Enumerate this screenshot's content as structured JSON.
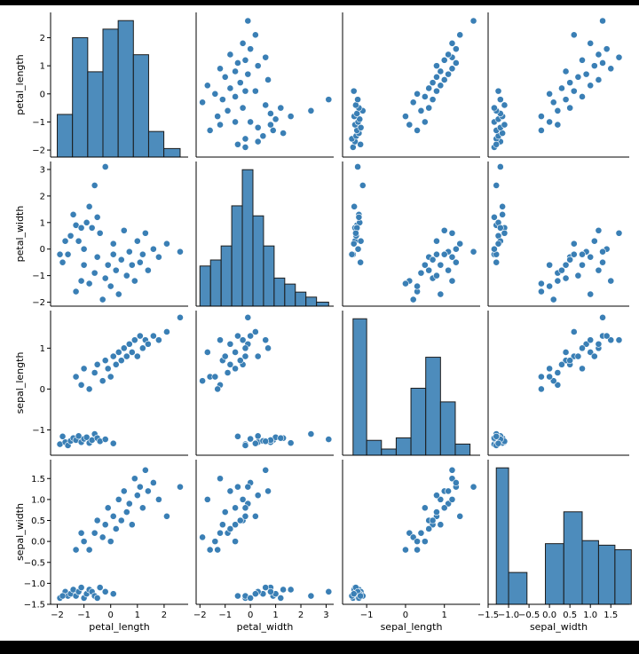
{
  "chart_data": {
    "type": "scatter",
    "variables": [
      "petal_length",
      "petal_width",
      "sepal_length",
      "sepal_width"
    ],
    "axis_labels": {
      "x": [
        "petal_length",
        "petal_width",
        "sepal_length",
        "sepal_width"
      ],
      "y": [
        "petal_length",
        "petal_width",
        "sepal_length",
        "sepal_width"
      ]
    },
    "ranges": {
      "petal_length": [
        -2.25,
        2.9
      ],
      "petal_width": [
        -2.15,
        3.3
      ],
      "sepal_length": [
        -1.62,
        1.92
      ],
      "sepal_width": [
        -1.5,
        1.95
      ]
    },
    "ticks": {
      "petal_length": [
        -2,
        -1,
        0,
        1,
        2
      ],
      "petal_width": [
        -2,
        -1,
        0,
        1,
        2,
        3
      ],
      "sepal_length": [
        -1,
        0,
        1
      ],
      "sepal_width": [
        -1.5,
        -1.0,
        -0.5,
        0.0,
        0.5,
        1.0,
        1.5
      ]
    },
    "tick_labels": {
      "petal_length": [
        "−2",
        "−1",
        "0",
        "1",
        "2"
      ],
      "petal_width": [
        "−2",
        "−1",
        "0",
        "1",
        "2",
        "3"
      ],
      "sepal_length": [
        "−1",
        "0",
        "1"
      ],
      "sepal_width": [
        "−1.5",
        "−1.0",
        "−0.5",
        "0.0",
        "0.5",
        "1.0",
        "1.5"
      ]
    },
    "histograms": {
      "petal_length": {
        "edges": [
          -2.0,
          -1.43,
          -0.86,
          -0.29,
          0.28,
          0.85,
          1.42,
          1.99,
          2.6
        ],
        "counts": [
          5,
          14,
          10,
          15,
          16,
          12,
          3,
          1
        ]
      },
      "petal_width": {
        "edges": [
          -2.0,
          -1.58,
          -1.16,
          -0.74,
          -0.32,
          0.1,
          0.52,
          0.94,
          1.36,
          1.78,
          2.2,
          2.62,
          3.1
        ],
        "counts": [
          2,
          2.3,
          3,
          5,
          6.8,
          4.5,
          3,
          1.4,
          1.1,
          0.7,
          0.45,
          0.2
        ]
      },
      "sepal_length": {
        "edges": [
          -1.35,
          -1.0,
          -0.62,
          -0.24,
          0.14,
          0.52,
          0.9,
          1.28,
          1.66
        ],
        "counts": [
          11,
          1.2,
          0.5,
          1.4,
          5.4,
          7.9,
          4.3,
          0.9
        ]
      },
      "sepal_width": {
        "edges": [
          -1.3,
          -1.0,
          -0.55,
          -0.1,
          0.35,
          0.8,
          1.2,
          1.6,
          2.0
        ],
        "counts": [
          9,
          2.1,
          0,
          4.0,
          6.1,
          4.2,
          3.9,
          3.6
        ]
      }
    },
    "points": [
      {
        "petal_length": -1.9,
        "petal_width": -0.2,
        "sepal_length": -1.35,
        "sepal_width": -1.35
      },
      {
        "petal_length": -1.7,
        "petal_width": 0.3,
        "sepal_length": -1.3,
        "sepal_width": -1.2
      },
      {
        "petal_length": -1.6,
        "petal_width": -0.2,
        "sepal_length": -1.38,
        "sepal_width": -1.3
      },
      {
        "petal_length": -1.5,
        "petal_width": 0.5,
        "sepal_length": -1.27,
        "sepal_width": -1.25
      },
      {
        "petal_length": -1.4,
        "petal_width": 1.3,
        "sepal_length": -1.2,
        "sepal_width": -1.15
      },
      {
        "petal_length": -1.3,
        "petal_width": 0.9,
        "sepal_length": -1.25,
        "sepal_width": -1.3
      },
      {
        "petal_length": -1.2,
        "petal_width": 0.3,
        "sepal_length": -1.15,
        "sepal_width": -1.2
      },
      {
        "petal_length": -1.1,
        "petal_width": 0.8,
        "sepal_length": -1.3,
        "sepal_width": -1.1
      },
      {
        "petal_length": -1.0,
        "petal_width": 0.0,
        "sepal_length": -1.22,
        "sepal_width": -1.35
      },
      {
        "petal_length": -0.9,
        "petal_width": 1.0,
        "sepal_length": -1.18,
        "sepal_width": -1.25
      },
      {
        "petal_length": -0.8,
        "petal_width": 1.6,
        "sepal_length": -1.32,
        "sepal_width": -1.15
      },
      {
        "petal_length": -0.7,
        "petal_width": 0.8,
        "sepal_length": -1.25,
        "sepal_width": -1.2
      },
      {
        "petal_length": -0.6,
        "petal_width": 2.4,
        "sepal_length": -1.1,
        "sepal_width": -1.3
      },
      {
        "petal_length": -0.5,
        "petal_width": 1.2,
        "sepal_length": -1.2,
        "sepal_width": -1.35
      },
      {
        "petal_length": -0.4,
        "petal_width": 0.6,
        "sepal_length": -1.28,
        "sepal_width": -1.1
      },
      {
        "petal_length": -0.2,
        "petal_width": 3.1,
        "sepal_length": -1.23,
        "sepal_width": -1.2
      },
      {
        "petal_length": 0.1,
        "petal_width": 0.2,
        "sepal_length": -1.33,
        "sepal_width": -1.25
      },
      {
        "petal_length": -1.8,
        "petal_width": -0.5,
        "sepal_length": -1.16,
        "sepal_width": -1.3
      },
      {
        "petal_length": -1.3,
        "petal_width": -1.6,
        "sepal_length": 0.3,
        "sepal_width": -0.2
      },
      {
        "petal_length": -1.1,
        "petal_width": -1.2,
        "sepal_length": 0.1,
        "sepal_width": 0.2
      },
      {
        "petal_length": -1.0,
        "petal_width": -0.6,
        "sepal_length": 0.5,
        "sepal_width": 0.0
      },
      {
        "petal_length": -0.8,
        "petal_width": -1.3,
        "sepal_length": 0.0,
        "sepal_width": -0.2
      },
      {
        "petal_length": -0.6,
        "petal_width": -0.9,
        "sepal_length": 0.4,
        "sepal_width": 0.2
      },
      {
        "petal_length": -0.5,
        "petal_width": -0.3,
        "sepal_length": 0.6,
        "sepal_width": 0.5
      },
      {
        "petal_length": -0.3,
        "petal_width": -1.9,
        "sepal_length": 0.2,
        "sepal_width": 0.1
      },
      {
        "petal_length": -0.2,
        "petal_width": -1.1,
        "sepal_length": 0.7,
        "sepal_width": 0.4
      },
      {
        "petal_length": -0.1,
        "petal_width": -0.6,
        "sepal_length": 0.5,
        "sepal_width": 0.8
      },
      {
        "petal_length": 0.0,
        "petal_width": -1.4,
        "sepal_length": 0.3,
        "sepal_width": 0.0
      },
      {
        "petal_length": 0.1,
        "petal_width": -0.2,
        "sepal_length": 0.8,
        "sepal_width": 0.6
      },
      {
        "petal_length": 0.2,
        "petal_width": -0.8,
        "sepal_length": 0.6,
        "sepal_width": 0.3
      },
      {
        "petal_length": 0.3,
        "petal_width": -1.7,
        "sepal_length": 0.9,
        "sepal_width": 1.0
      },
      {
        "petal_length": 0.4,
        "petal_width": -0.4,
        "sepal_length": 0.7,
        "sepal_width": 0.5
      },
      {
        "petal_length": 0.5,
        "petal_width": 0.7,
        "sepal_length": 1.0,
        "sepal_width": 1.2
      },
      {
        "petal_length": 0.6,
        "petal_width": -1.0,
        "sepal_length": 0.8,
        "sepal_width": 0.7
      },
      {
        "petal_length": 0.7,
        "petal_width": -0.1,
        "sepal_length": 1.1,
        "sepal_width": 0.9
      },
      {
        "petal_length": 0.8,
        "petal_width": -0.6,
        "sepal_length": 0.9,
        "sepal_width": 0.4
      },
      {
        "petal_length": 0.9,
        "petal_width": -1.2,
        "sepal_length": 1.2,
        "sepal_width": 1.5
      },
      {
        "petal_length": 1.0,
        "petal_width": 0.3,
        "sepal_length": 0.8,
        "sepal_width": 1.1
      },
      {
        "petal_length": 1.1,
        "petal_width": -0.5,
        "sepal_length": 1.3,
        "sepal_width": 1.3
      },
      {
        "petal_length": 1.2,
        "petal_width": -0.2,
        "sepal_length": 1.0,
        "sepal_width": 0.8
      },
      {
        "petal_length": 1.3,
        "petal_width": 0.6,
        "sepal_length": 1.2,
        "sepal_width": 1.7
      },
      {
        "petal_length": 1.4,
        "petal_width": -0.8,
        "sepal_length": 1.1,
        "sepal_width": 1.2
      },
      {
        "petal_length": 1.6,
        "petal_width": 0.0,
        "sepal_length": 1.3,
        "sepal_width": 1.4
      },
      {
        "petal_length": 1.8,
        "petal_width": -0.3,
        "sepal_length": 1.2,
        "sepal_width": 1.0
      },
      {
        "petal_length": 2.1,
        "petal_width": 0.2,
        "sepal_length": 1.4,
        "sepal_width": 0.6
      },
      {
        "petal_length": 2.6,
        "petal_width": -0.1,
        "sepal_length": 1.75,
        "sepal_width": 1.3
      }
    ]
  }
}
